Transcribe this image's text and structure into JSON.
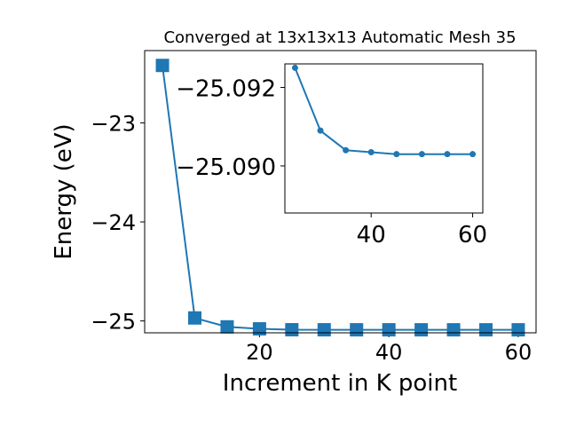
{
  "chart_data": [
    {
      "type": "line",
      "title": "Converged at 13x13x13 Automatic Mesh 35",
      "xlabel": "Increment in K point",
      "ylabel": "Energy (eV)",
      "xlim": [
        2.25,
        62.75
      ],
      "ylim": [
        -25.12,
        -22.27
      ],
      "xticks": [
        20,
        40,
        60
      ],
      "xtick_labels": [
        "20",
        "40",
        "60"
      ],
      "yticks": [
        -25,
        -24,
        -23
      ],
      "ytick_labels": [
        "−25",
        "−24",
        "−23"
      ],
      "marker": "square",
      "color": "#1f77b4",
      "grid": false,
      "series": [
        {
          "x": [
            5,
            10,
            15,
            20,
            25,
            30,
            35,
            40,
            45,
            50,
            55,
            60
          ],
          "values": [
            -22.42,
            -24.97,
            -25.06,
            -25.08,
            -25.089,
            -25.0893,
            -25.0895,
            -25.0895,
            -25.0896,
            -25.0896,
            -25.0896,
            -25.0896
          ]
        }
      ]
    },
    {
      "type": "line",
      "title": "",
      "xlabel": "",
      "ylabel": "",
      "xlim": [
        23,
        62
      ],
      "ylim": [
        -25.0888,
        -25.0926
      ],
      "xticks": [
        40,
        60
      ],
      "xtick_labels": [
        "40",
        "60"
      ],
      "yticks": [
        -25.092,
        -25.09
      ],
      "ytick_labels": [
        "−25.092",
        "−25.090"
      ],
      "marker": "circle",
      "color": "#1f77b4",
      "grid": false,
      "series": [
        {
          "x": [
            25,
            30,
            35,
            40,
            45,
            50,
            55,
            60
          ],
          "values": [
            -25.0925,
            -25.0909,
            -25.0904,
            -25.09035,
            -25.0903,
            -25.0903,
            -25.0903,
            -25.0903
          ]
        }
      ]
    }
  ]
}
